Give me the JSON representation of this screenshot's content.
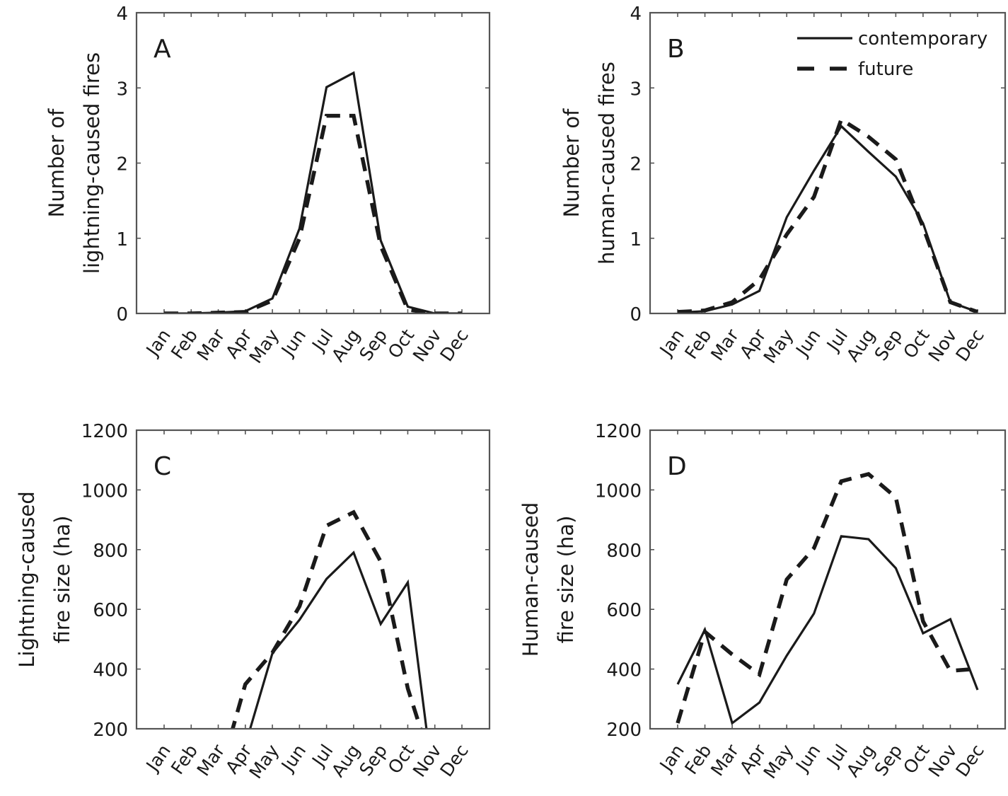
{
  "chart_data": [
    {
      "type": "line",
      "panel_label": "A",
      "title": "",
      "xlabel": "",
      "ylabel_lines": [
        "Number of",
        "lightning-caused fires"
      ],
      "categories": [
        "Jan",
        "Feb",
        "Mar",
        "Apr",
        "May",
        "Jun",
        "Jul",
        "Aug",
        "Sep",
        "Oct",
        "Nov",
        "Dec"
      ],
      "ylim": [
        0,
        4
      ],
      "yticks": [
        0,
        1,
        2,
        3,
        4
      ],
      "ytick_labels": [
        "0",
        "1",
        "2",
        "3",
        "4"
      ],
      "grid": false,
      "series": [
        {
          "name": "contemporary",
          "style": "solid",
          "values": [
            0.0,
            0.0,
            0.01,
            0.03,
            0.2,
            1.13,
            3.01,
            3.2,
            0.97,
            0.09,
            0.0,
            0.0
          ]
        },
        {
          "name": "future",
          "style": "dashed",
          "values": [
            0.0,
            0.0,
            0.01,
            0.02,
            0.17,
            1.0,
            2.63,
            2.63,
            0.9,
            0.05,
            0.0,
            0.0
          ]
        }
      ]
    },
    {
      "type": "line",
      "panel_label": "B",
      "title": "",
      "xlabel": "",
      "ylabel_lines": [
        "Number of",
        "human-caused fires"
      ],
      "categories": [
        "Jan",
        "Feb",
        "Mar",
        "Apr",
        "May",
        "Jun",
        "Jul",
        "Aug",
        "Sep",
        "Oct",
        "Nov",
        "Dec"
      ],
      "ylim": [
        0,
        4
      ],
      "yticks": [
        0,
        1,
        2,
        3,
        4
      ],
      "ytick_labels": [
        "0",
        "1",
        "2",
        "3",
        "4"
      ],
      "grid": false,
      "legend": {
        "position": "top-right",
        "entries": [
          {
            "label": "contemporary",
            "style": "solid"
          },
          {
            "label": "future",
            "style": "dashed"
          }
        ]
      },
      "series": [
        {
          "name": "contemporary",
          "style": "solid",
          "values": [
            0.01,
            0.03,
            0.12,
            0.3,
            1.28,
            1.9,
            2.49,
            2.15,
            1.82,
            1.2,
            0.15,
            0.02
          ]
        },
        {
          "name": "future",
          "style": "dashed",
          "values": [
            0.02,
            0.04,
            0.15,
            0.45,
            1.05,
            1.55,
            2.58,
            2.35,
            2.05,
            1.15,
            0.15,
            0.02
          ]
        }
      ]
    },
    {
      "type": "line",
      "panel_label": "C",
      "title": "",
      "xlabel": "",
      "ylabel_lines": [
        "Lightning-caused",
        "fire size (ha)"
      ],
      "categories": [
        "Jan",
        "Feb",
        "Mar",
        "Apr",
        "May",
        "Jun",
        "Jul",
        "Aug",
        "Sep",
        "Oct",
        "Nov",
        "Dec"
      ],
      "ylim": [
        200,
        1200
      ],
      "yticks": [
        200,
        400,
        600,
        800,
        1000,
        1200
      ],
      "ytick_labels": [
        "200",
        "400",
        "600",
        "800",
        "1000",
        "1200"
      ],
      "grid": false,
      "series": [
        {
          "name": "contemporary",
          "style": "solid",
          "values": [
            null,
            null,
            null,
            145,
            453,
            565,
            702,
            790,
            551,
            690,
            -20,
            null
          ]
        },
        {
          "name": "future",
          "style": "dashed",
          "values": [
            null,
            null,
            30,
            349,
            455,
            610,
            880,
            925,
            760,
            335,
            50,
            null
          ]
        }
      ]
    },
    {
      "type": "line",
      "panel_label": "D",
      "title": "",
      "xlabel": "",
      "ylabel_lines": [
        "Human-caused",
        "fire size (ha)"
      ],
      "categories": [
        "Jan",
        "Feb",
        "Mar",
        "Apr",
        "May",
        "Jun",
        "Jul",
        "Aug",
        "Sep",
        "Oct",
        "Nov",
        "Dec"
      ],
      "ylim": [
        200,
        1200
      ],
      "yticks": [
        200,
        400,
        600,
        800,
        1000,
        1200
      ],
      "ytick_labels": [
        "200",
        "400",
        "600",
        "800",
        "1000",
        "1200"
      ],
      "grid": false,
      "series": [
        {
          "name": "contemporary",
          "style": "solid",
          "values": [
            349,
            532,
            219,
            288,
            445,
            586,
            845,
            835,
            738,
            520,
            567,
            330
          ]
        },
        {
          "name": "future",
          "style": "dashed",
          "values": [
            219,
            525,
            449,
            382,
            700,
            805,
            1029,
            1053,
            975,
            560,
            394,
            401
          ]
        }
      ]
    }
  ]
}
